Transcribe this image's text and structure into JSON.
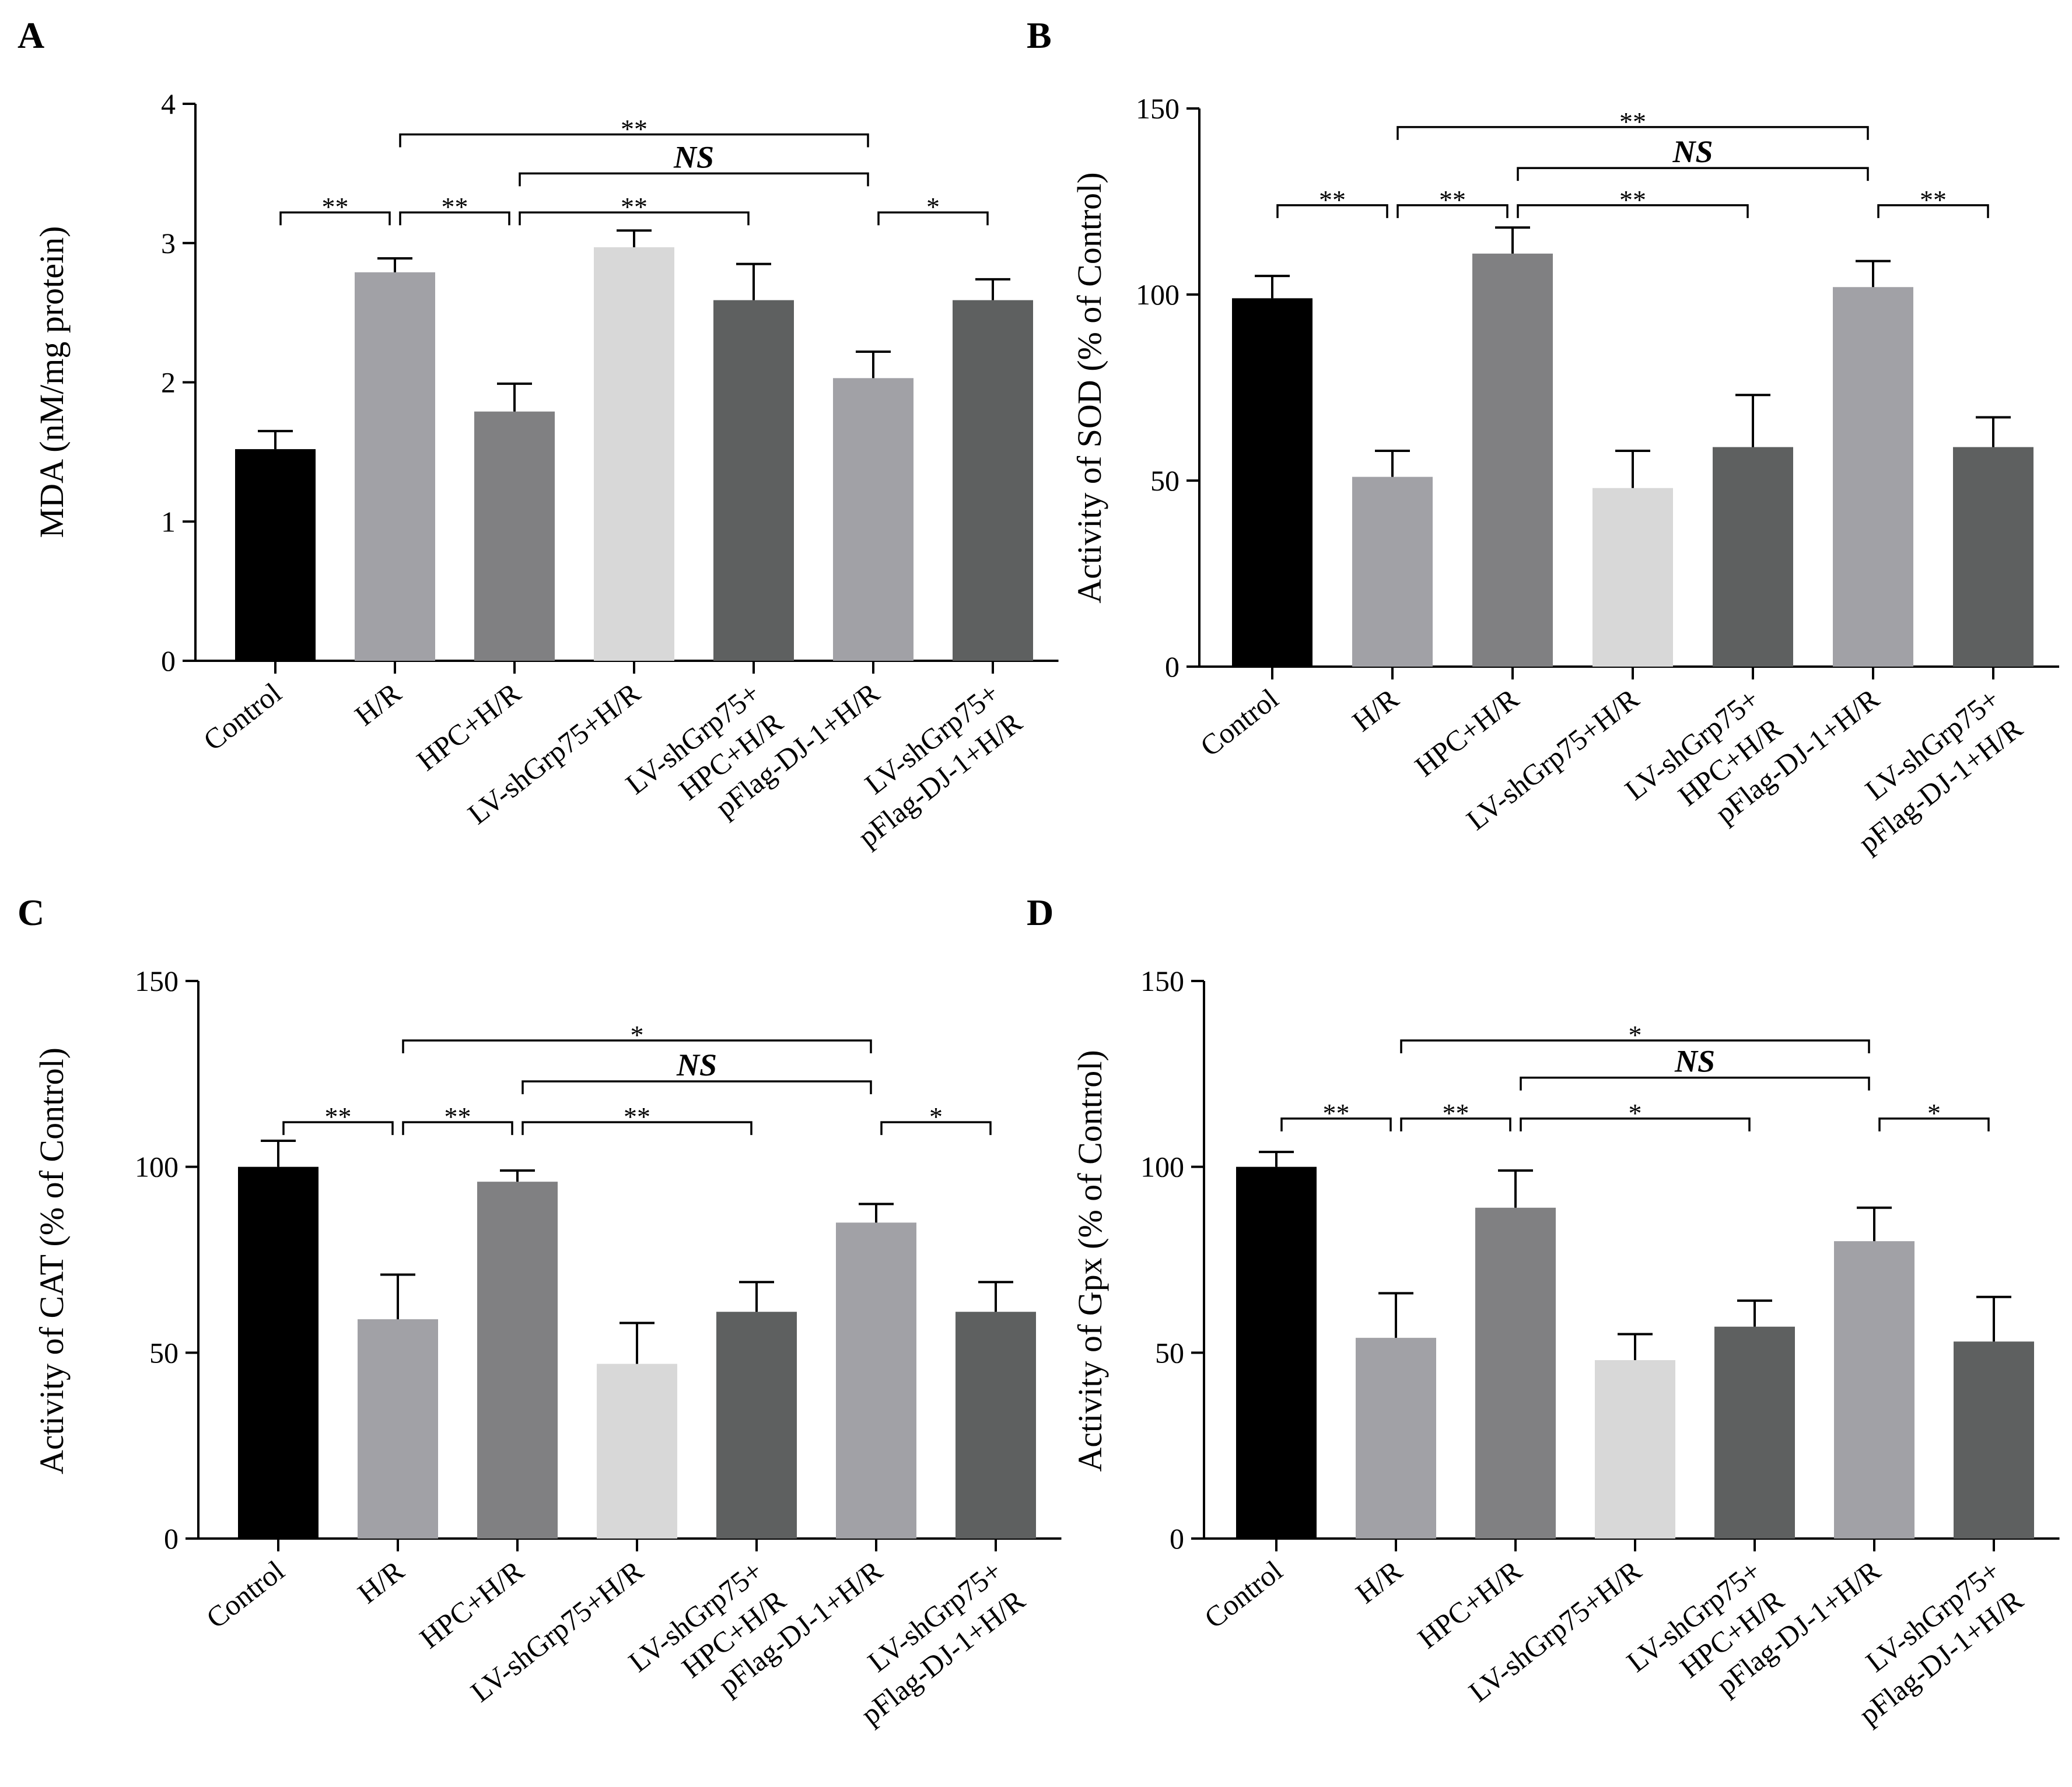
{
  "panels": [
    {
      "letter": "A"
    },
    {
      "letter": "B"
    },
    {
      "letter": "C"
    },
    {
      "letter": "D"
    }
  ],
  "colors": [
    "#000000",
    "#a1a1a6",
    "#808082",
    "#d8d8d8",
    "#5e6060",
    "#a1a1a6",
    "#5e6060"
  ],
  "chart_data": [
    {
      "type": "bar",
      "panel": "A",
      "categories": [
        "Control",
        "H/R",
        "HPC+H/R",
        "LV-shGrp75+H/R",
        "LV-shGrp75+\nHPC+H/R",
        "pFlag-DJ-1+H/R",
        "LV-shGrp75+\npFlag-DJ-1+H/R"
      ],
      "values": [
        1.52,
        2.79,
        1.79,
        2.97,
        2.59,
        2.03,
        2.59
      ],
      "errors": [
        0.13,
        0.1,
        0.2,
        0.12,
        0.26,
        0.19,
        0.15
      ],
      "ylabel": "MDA (nM/mg protein)",
      "ylim": [
        0,
        4
      ],
      "yticks": [
        0,
        1,
        2,
        3,
        4
      ],
      "annotations": [
        {
          "from": 0,
          "to": 1,
          "y": 3.22,
          "label": "**"
        },
        {
          "from": 1,
          "to": 2,
          "y": 3.22,
          "label": "**"
        },
        {
          "from": 2,
          "to": 4,
          "y": 3.22,
          "label": "**"
        },
        {
          "from": 5,
          "to": 6,
          "y": 3.22,
          "label": "*"
        },
        {
          "from": 2,
          "to": 5,
          "y": 3.5,
          "label": "NS"
        },
        {
          "from": 1,
          "to": 5,
          "y": 3.78,
          "label": "**"
        }
      ]
    },
    {
      "type": "bar",
      "panel": "B",
      "categories": [
        "Control",
        "H/R",
        "HPC+H/R",
        "LV-shGrp75+H/R",
        "LV-shGrp75+\nHPC+H/R",
        "pFlag-DJ-1+H/R",
        "LV-shGrp75+\npFlag-DJ-1+H/R"
      ],
      "values": [
        99,
        51,
        111,
        48,
        59,
        102,
        59
      ],
      "errors": [
        6,
        7,
        7,
        10,
        14,
        7,
        8
      ],
      "ylabel": "Activity of SOD (% of Control)",
      "ylim": [
        0,
        150
      ],
      "yticks": [
        0,
        50,
        100,
        150
      ],
      "annotations": [
        {
          "from": 0,
          "to": 1,
          "y": 124,
          "label": "**"
        },
        {
          "from": 1,
          "to": 2,
          "y": 124,
          "label": "**"
        },
        {
          "from": 2,
          "to": 4,
          "y": 124,
          "label": "**"
        },
        {
          "from": 5,
          "to": 6,
          "y": 124,
          "label": "**"
        },
        {
          "from": 2,
          "to": 5,
          "y": 134,
          "label": "NS"
        },
        {
          "from": 1,
          "to": 5,
          "y": 145,
          "label": "**"
        }
      ]
    },
    {
      "type": "bar",
      "panel": "C",
      "categories": [
        "Control",
        "H/R",
        "HPC+H/R",
        "LV-shGrp75+H/R",
        "LV-shGrp75+\nHPC+H/R",
        "pFlag-DJ-1+H/R",
        "LV-shGrp75+\npFlag-DJ-1+H/R"
      ],
      "values": [
        100,
        59,
        96,
        47,
        61,
        85,
        61
      ],
      "errors": [
        7,
        12,
        3,
        11,
        8,
        5,
        8
      ],
      "ylabel": "Activity of CAT (% of Control)",
      "ylim": [
        0,
        150
      ],
      "yticks": [
        0,
        50,
        100,
        150
      ],
      "annotations": [
        {
          "from": 0,
          "to": 1,
          "y": 112,
          "label": "**"
        },
        {
          "from": 1,
          "to": 2,
          "y": 112,
          "label": "**"
        },
        {
          "from": 2,
          "to": 4,
          "y": 112,
          "label": "**"
        },
        {
          "from": 5,
          "to": 6,
          "y": 112,
          "label": "*"
        },
        {
          "from": 2,
          "to": 5,
          "y": 123,
          "label": "NS"
        },
        {
          "from": 1,
          "to": 5,
          "y": 134,
          "label": "*"
        }
      ]
    },
    {
      "type": "bar",
      "panel": "D",
      "categories": [
        "Control",
        "H/R",
        "HPC+H/R",
        "LV-shGrp75+H/R",
        "LV-shGrp75+\nHPC+H/R",
        "pFlag-DJ-1+H/R",
        "LV-shGrp75+\npFlag-DJ-1+H/R"
      ],
      "values": [
        100,
        54,
        89,
        48,
        57,
        80,
        53
      ],
      "errors": [
        4,
        12,
        10,
        7,
        7,
        9,
        12
      ],
      "ylabel": "Activity of Gpx (% of Control)",
      "ylim": [
        0,
        150
      ],
      "yticks": [
        0,
        50,
        100,
        150
      ],
      "annotations": [
        {
          "from": 0,
          "to": 1,
          "y": 113,
          "label": "**"
        },
        {
          "from": 1,
          "to": 2,
          "y": 113,
          "label": "**"
        },
        {
          "from": 2,
          "to": 4,
          "y": 113,
          "label": "*"
        },
        {
          "from": 5,
          "to": 6,
          "y": 113,
          "label": "*"
        },
        {
          "from": 2,
          "to": 5,
          "y": 124,
          "label": "NS"
        },
        {
          "from": 1,
          "to": 5,
          "y": 134,
          "label": "*"
        }
      ]
    }
  ]
}
